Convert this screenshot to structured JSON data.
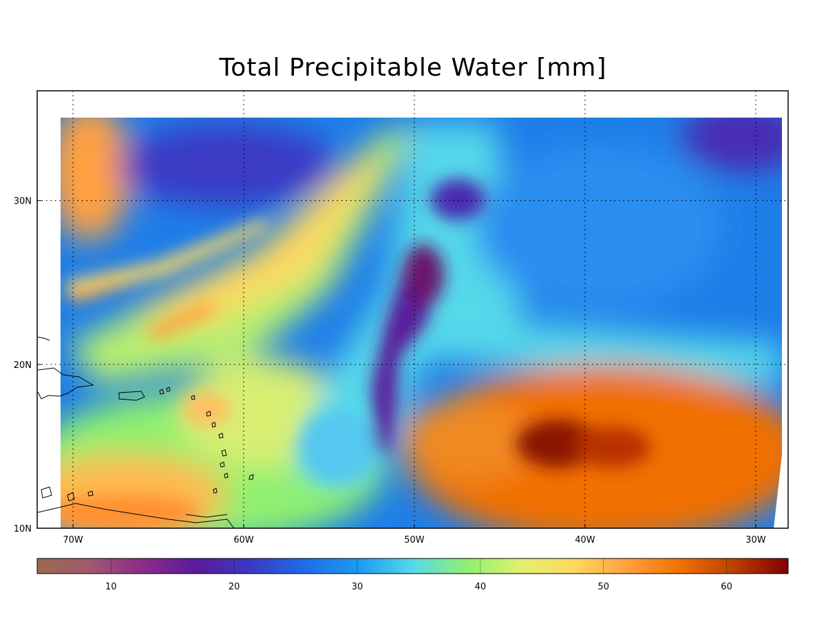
{
  "title": "Total Precipitable Water [mm]",
  "map": {
    "lon_ticks": [
      {
        "lon": -70,
        "label": "70W"
      },
      {
        "lon": -60,
        "label": "60W"
      },
      {
        "lon": -50,
        "label": "50W"
      },
      {
        "lon": -40,
        "label": "40W"
      },
      {
        "lon": -30,
        "label": "30W"
      }
    ],
    "lat_ticks": [
      {
        "lat": 10,
        "label": "10N"
      },
      {
        "lat": 20,
        "label": "20N"
      },
      {
        "lat": 30,
        "label": "30N"
      }
    ],
    "lon_range": [
      -72.1,
      -28.1
    ],
    "lat_range": [
      10,
      36.7
    ],
    "data_extent": {
      "lon": [
        -70.7,
        -28.5
      ],
      "lat": [
        10,
        35
      ]
    },
    "grid": "dotted"
  },
  "colorbar": {
    "range": [
      4,
      65
    ],
    "ticks": [
      10,
      20,
      30,
      40,
      50,
      60
    ],
    "tick_labels": [
      "10",
      "20",
      "30",
      "40",
      "50",
      "60"
    ],
    "colors": [
      "#9c6a4e",
      "#a05870",
      "#8a2a8a",
      "#5a1a9a",
      "#3a3ac4",
      "#1e6ee8",
      "#1e9af0",
      "#55d8ea",
      "#8ff070",
      "#e0f070",
      "#ffd860",
      "#ffa040",
      "#f07000",
      "#b84000",
      "#800000"
    ]
  },
  "features": [
    {
      "name": "warm-pool-east",
      "value_mm": 62,
      "lon": -41,
      "lat": 15.5
    },
    {
      "name": "dry-tongue",
      "value_mm": 21,
      "lon": -49,
      "lat": 25
    },
    {
      "name": "dry-northeast",
      "value_mm": 22,
      "lon": -30,
      "lat": 34
    },
    {
      "name": "dry-northwest",
      "value_mm": 22,
      "lon": -62,
      "lat": 32
    }
  ]
}
